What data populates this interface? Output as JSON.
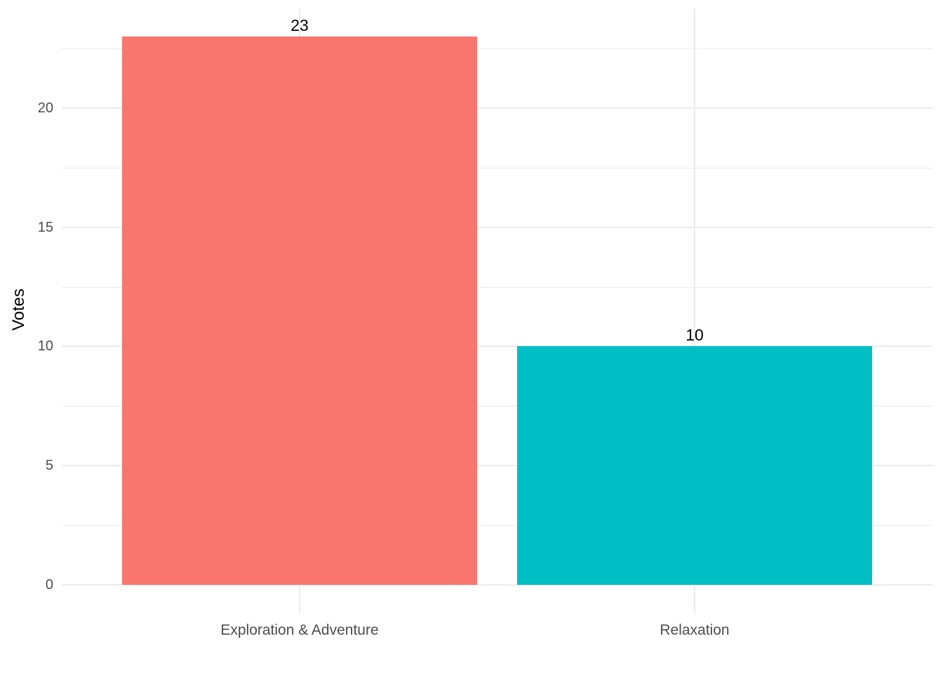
{
  "chart_data": {
    "type": "bar",
    "title": "",
    "categories": [
      "Exploration & Adventure",
      "Relaxation"
    ],
    "values": [
      23,
      10
    ],
    "bar_labels": [
      "23",
      "10"
    ],
    "bar_colors": [
      "#F8766D",
      "#00BFC4"
    ],
    "xlabel": "",
    "ylabel": "Votes",
    "ylim": [
      0,
      23
    ],
    "yticks": [
      0,
      5,
      10,
      15,
      20
    ],
    "minor_yticks": [
      2.5,
      7.5,
      12.5,
      17.5,
      22.5
    ],
    "grid": true,
    "legend_position": "none",
    "style": {
      "background_color": "#FFFFFF",
      "grid_color": "#EBEBEB",
      "axis_text_color": "#4D4D4D",
      "label_color": "#000000"
    }
  }
}
